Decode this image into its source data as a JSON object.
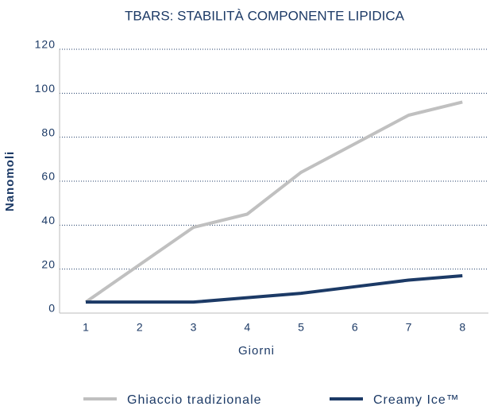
{
  "chart_data": {
    "type": "line",
    "title": "TBARS: STABILITÀ COMPONENTE LIPIDICA",
    "x_label": "Giorni",
    "y_label": "Nanomoli",
    "categories": [
      "1",
      "2",
      "3",
      "4",
      "5",
      "6",
      "7",
      "8"
    ],
    "series": [
      {
        "name": "Ghiaccio tradizionale",
        "color": "#c0c0c0",
        "values": [
          5,
          22,
          39,
          45,
          64,
          77,
          90,
          96
        ]
      },
      {
        "name": "Creamy Ice™",
        "color": "#1c3a66",
        "values": [
          5,
          5,
          5,
          7,
          9,
          12,
          15,
          17
        ]
      }
    ],
    "ylim": [
      0,
      120
    ],
    "yticks": [
      0,
      20,
      40,
      60,
      80,
      100,
      120
    ],
    "grid": true
  }
}
